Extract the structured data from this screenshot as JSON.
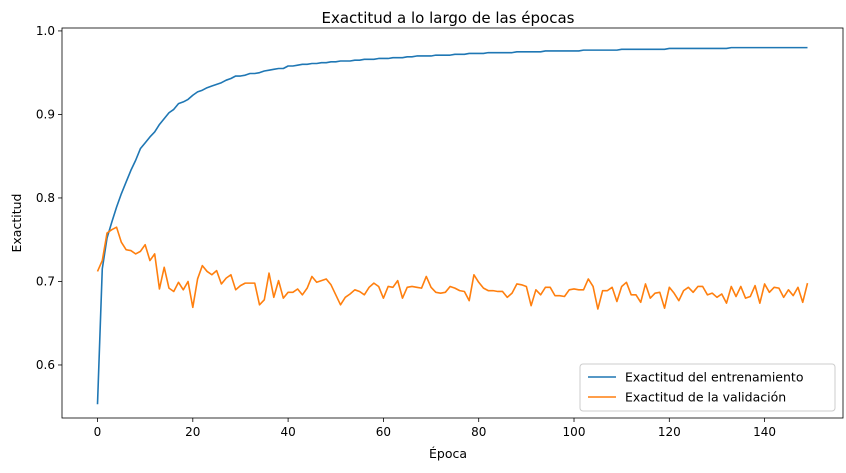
{
  "chart_data": {
    "type": "line",
    "title": "Exactitud a lo largo de las épocas",
    "xlabel": "Época",
    "ylabel": "Exactitud",
    "xlim": [
      -7.45,
      156.45
    ],
    "ylim": [
      0.5365,
      1.0035
    ],
    "xticks": [
      0,
      20,
      40,
      60,
      80,
      100,
      120,
      140
    ],
    "xtick_labels": [
      "0",
      "20",
      "40",
      "60",
      "80",
      "100",
      "120",
      "140"
    ],
    "yticks": [
      0.6,
      0.7,
      0.8,
      0.9,
      1.0
    ],
    "ytick_labels": [
      "0.6",
      "0.7",
      "0.8",
      "0.9",
      "1.0"
    ],
    "grid": false,
    "legend_position": "lower-right",
    "series": [
      {
        "name": "Exactitud del entrenamiento",
        "color": "#1f77b4",
        "values": [
          0.553,
          0.715,
          0.752,
          0.771,
          0.789,
          0.805,
          0.819,
          0.833,
          0.845,
          0.859,
          0.866,
          0.873,
          0.879,
          0.888,
          0.895,
          0.902,
          0.906,
          0.913,
          0.915,
          0.918,
          0.923,
          0.927,
          0.929,
          0.932,
          0.934,
          0.936,
          0.938,
          0.941,
          0.943,
          0.946,
          0.946,
          0.947,
          0.949,
          0.949,
          0.95,
          0.952,
          0.953,
          0.954,
          0.955,
          0.955,
          0.958,
          0.958,
          0.959,
          0.96,
          0.96,
          0.961,
          0.961,
          0.962,
          0.962,
          0.963,
          0.963,
          0.964,
          0.964,
          0.964,
          0.965,
          0.965,
          0.966,
          0.966,
          0.966,
          0.967,
          0.967,
          0.967,
          0.968,
          0.968,
          0.968,
          0.969,
          0.969,
          0.97,
          0.97,
          0.97,
          0.97,
          0.971,
          0.971,
          0.971,
          0.971,
          0.972,
          0.972,
          0.972,
          0.973,
          0.973,
          0.973,
          0.973,
          0.974,
          0.974,
          0.974,
          0.974,
          0.974,
          0.974,
          0.975,
          0.975,
          0.975,
          0.975,
          0.975,
          0.975,
          0.976,
          0.976,
          0.976,
          0.976,
          0.976,
          0.976,
          0.976,
          0.976,
          0.977,
          0.977,
          0.977,
          0.977,
          0.977,
          0.977,
          0.977,
          0.977,
          0.978,
          0.978,
          0.978,
          0.978,
          0.978,
          0.978,
          0.978,
          0.978,
          0.978,
          0.978,
          0.979,
          0.979,
          0.979,
          0.979,
          0.979,
          0.979,
          0.979,
          0.979,
          0.979,
          0.979,
          0.979,
          0.979,
          0.979,
          0.98,
          0.98,
          0.98,
          0.98,
          0.98,
          0.98,
          0.98,
          0.98,
          0.98,
          0.98,
          0.98,
          0.98,
          0.98,
          0.98,
          0.98,
          0.98,
          0.98
        ]
      },
      {
        "name": "Exactitud de la validación",
        "color": "#ff7f0e",
        "values": [
          0.712,
          0.725,
          0.758,
          0.762,
          0.765,
          0.747,
          0.738,
          0.737,
          0.733,
          0.736,
          0.744,
          0.725,
          0.733,
          0.691,
          0.717,
          0.692,
          0.688,
          0.699,
          0.69,
          0.7,
          0.669,
          0.703,
          0.719,
          0.712,
          0.708,
          0.713,
          0.697,
          0.704,
          0.708,
          0.69,
          0.695,
          0.698,
          0.698,
          0.698,
          0.672,
          0.678,
          0.71,
          0.681,
          0.701,
          0.68,
          0.687,
          0.687,
          0.691,
          0.684,
          0.692,
          0.706,
          0.699,
          0.701,
          0.703,
          0.696,
          0.684,
          0.672,
          0.681,
          0.685,
          0.69,
          0.688,
          0.684,
          0.693,
          0.698,
          0.694,
          0.68,
          0.694,
          0.693,
          0.701,
          0.68,
          0.693,
          0.694,
          0.693,
          0.692,
          0.706,
          0.693,
          0.687,
          0.686,
          0.687,
          0.694,
          0.692,
          0.689,
          0.688,
          0.677,
          0.708,
          0.699,
          0.692,
          0.689,
          0.689,
          0.688,
          0.688,
          0.681,
          0.686,
          0.697,
          0.696,
          0.694,
          0.671,
          0.69,
          0.684,
          0.693,
          0.693,
          0.683,
          0.683,
          0.682,
          0.69,
          0.691,
          0.69,
          0.69,
          0.703,
          0.694,
          0.667,
          0.689,
          0.689,
          0.693,
          0.676,
          0.694,
          0.699,
          0.684,
          0.684,
          0.675,
          0.697,
          0.68,
          0.686,
          0.687,
          0.668,
          0.693,
          0.686,
          0.677,
          0.689,
          0.693,
          0.687,
          0.694,
          0.694,
          0.684,
          0.686,
          0.681,
          0.685,
          0.674,
          0.694,
          0.682,
          0.694,
          0.68,
          0.682,
          0.695,
          0.674,
          0.697,
          0.687,
          0.693,
          0.692,
          0.681,
          0.69,
          0.683,
          0.693,
          0.675,
          0.698
        ]
      }
    ]
  }
}
